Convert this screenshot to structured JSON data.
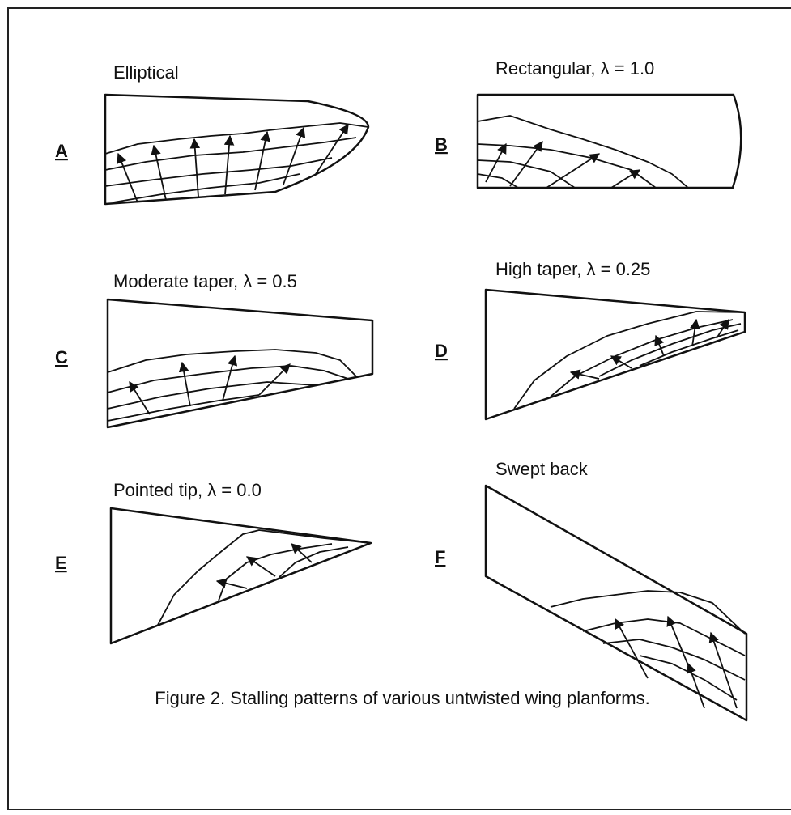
{
  "panels": [
    {
      "letter": "A",
      "title": "Elliptical"
    },
    {
      "letter": "B",
      "title": "Rectangular, λ = 1.0"
    },
    {
      "letter": "C",
      "title": "Moderate taper, λ = 0.5"
    },
    {
      "letter": "D",
      "title": "High taper, λ = 0.25"
    },
    {
      "letter": "E",
      "title": "Pointed tip, λ = 0.0"
    },
    {
      "letter": "F",
      "title": "Swept back"
    }
  ],
  "caption": "Figure 2. Stalling patterns of various untwisted wing planforms."
}
